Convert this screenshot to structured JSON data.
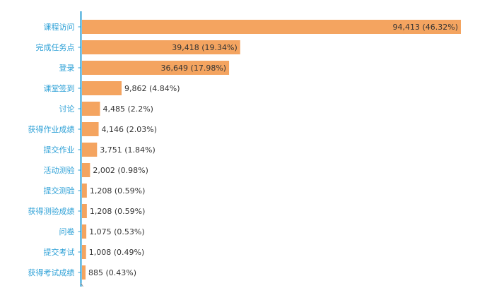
{
  "colors": {
    "bar": "#f4a460",
    "axis": "#2a9fd6",
    "category_text": "#2a9fd6",
    "value_text": "#333333"
  },
  "chart_data": {
    "type": "bar",
    "orientation": "horizontal",
    "title": "",
    "xlabel": "",
    "ylabel": "",
    "grid": false,
    "legend": "none",
    "xlim": [
      0,
      94413
    ],
    "categories": [
      "课程访问",
      "完成任务点",
      "登录",
      "课堂签到",
      "讨论",
      "获得作业成绩",
      "提交作业",
      "活动测验",
      "提交测验",
      "获得测验成绩",
      "问卷",
      "提交考试",
      "获得考试成绩"
    ],
    "values": [
      94413,
      39418,
      36649,
      9862,
      4485,
      4146,
      3751,
      2002,
      1208,
      1208,
      1075,
      1008,
      885
    ],
    "data_labels": [
      "94,413 (46.32%)",
      "39,418 (19.34%)",
      "36,649 (17.98%)",
      "9,862 (4.84%)",
      "4,485 (2.2%)",
      "4,146 (2.03%)",
      "3,751 (1.84%)",
      "2,002 (0.98%)",
      "1,208 (0.59%)",
      "1,208 (0.59%)",
      "1,075 (0.53%)",
      "1,008 (0.49%)",
      "885 (0.43%)"
    ]
  }
}
